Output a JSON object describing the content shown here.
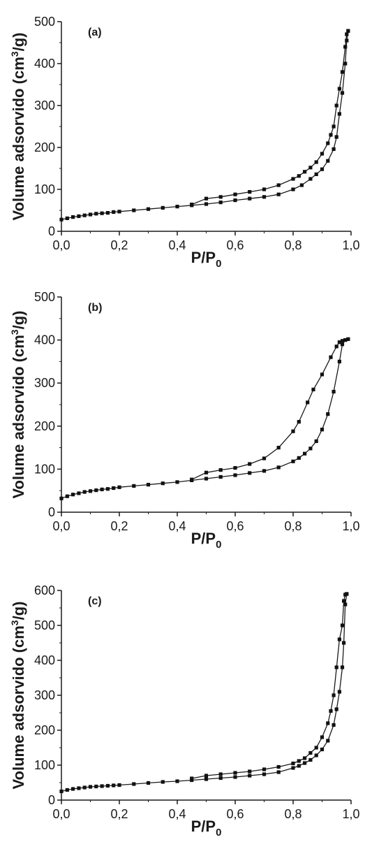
{
  "chart_data": [
    {
      "type": "line",
      "panel_label": "(a)",
      "ylabel_main": "Volume adsorvido (cm",
      "ylabel_sup": "3",
      "ylabel_tail": "/g)",
      "xlabel_main": "P/P",
      "xlabel_sub": "0",
      "xlim": [
        0,
        1
      ],
      "ylim": [
        0,
        500
      ],
      "x_ticks": [
        0,
        0.2,
        0.4,
        0.6,
        0.8,
        1.0
      ],
      "x_tick_labels": [
        "0,0",
        "0,2",
        "0,4",
        "0,6",
        "0,8",
        "1,0"
      ],
      "y_ticks": [
        0,
        100,
        200,
        300,
        400,
        500
      ],
      "y_tick_labels": [
        "0",
        "100",
        "200",
        "300",
        "400",
        "500"
      ],
      "series": [
        {
          "x": [
            0.0,
            0.02,
            0.04,
            0.06,
            0.08,
            0.1,
            0.12,
            0.14,
            0.16,
            0.18,
            0.2,
            0.25,
            0.3,
            0.35,
            0.4,
            0.45,
            0.5,
            0.55,
            0.6,
            0.65,
            0.7,
            0.75,
            0.8,
            0.83,
            0.86,
            0.88,
            0.9,
            0.92,
            0.94,
            0.95,
            0.96,
            0.97,
            0.98,
            0.985,
            0.99
          ],
          "y": [
            28,
            31,
            34,
            36,
            38,
            40,
            42,
            43,
            44,
            46,
            47,
            50,
            53,
            56,
            59,
            62,
            65,
            69,
            74,
            78,
            82,
            88,
            100,
            110,
            125,
            136,
            148,
            168,
            196,
            225,
            280,
            330,
            400,
            455,
            478
          ]
        },
        {
          "x": [
            0.99,
            0.985,
            0.98,
            0.97,
            0.96,
            0.95,
            0.94,
            0.93,
            0.92,
            0.9,
            0.88,
            0.86,
            0.84,
            0.82,
            0.8,
            0.75,
            0.7,
            0.65,
            0.6,
            0.55,
            0.5,
            0.45
          ],
          "y": [
            478,
            470,
            440,
            380,
            340,
            300,
            250,
            230,
            210,
            185,
            165,
            152,
            142,
            132,
            125,
            110,
            100,
            94,
            88,
            82,
            78,
            64
          ]
        }
      ]
    },
    {
      "type": "line",
      "panel_label": "(b)",
      "ylabel_main": "Volume adsorvido (cm",
      "ylabel_sup": "3",
      "ylabel_tail": "/g)",
      "xlabel_main": "P/P",
      "xlabel_sub": "0",
      "xlim": [
        0,
        1
      ],
      "ylim": [
        0,
        500
      ],
      "x_ticks": [
        0,
        0.2,
        0.4,
        0.6,
        0.8,
        1.0
      ],
      "x_tick_labels": [
        "0,0",
        "0,2",
        "0,4",
        "0,6",
        "0,8",
        "1,0"
      ],
      "y_ticks": [
        0,
        100,
        200,
        300,
        400,
        500
      ],
      "y_tick_labels": [
        "0",
        "100",
        "200",
        "300",
        "400",
        "500"
      ],
      "series": [
        {
          "x": [
            0.0,
            0.02,
            0.04,
            0.06,
            0.08,
            0.1,
            0.12,
            0.14,
            0.16,
            0.18,
            0.2,
            0.25,
            0.3,
            0.35,
            0.4,
            0.45,
            0.5,
            0.55,
            0.6,
            0.65,
            0.7,
            0.75,
            0.8,
            0.82,
            0.84,
            0.86,
            0.88,
            0.9,
            0.92,
            0.94,
            0.96,
            0.97,
            0.98,
            0.99
          ],
          "y": [
            32,
            37,
            41,
            44,
            47,
            49,
            51,
            53,
            54,
            56,
            58,
            61,
            64,
            67,
            70,
            74,
            78,
            82,
            86,
            91,
            96,
            104,
            118,
            126,
            136,
            148,
            165,
            192,
            228,
            280,
            350,
            390,
            400,
            402
          ]
        },
        {
          "x": [
            0.99,
            0.98,
            0.97,
            0.96,
            0.95,
            0.93,
            0.9,
            0.87,
            0.85,
            0.82,
            0.8,
            0.75,
            0.7,
            0.65,
            0.6,
            0.55,
            0.5,
            0.45
          ],
          "y": [
            402,
            400,
            398,
            395,
            385,
            360,
            320,
            285,
            255,
            210,
            188,
            150,
            125,
            112,
            103,
            98,
            92,
            76
          ]
        }
      ]
    },
    {
      "type": "line",
      "panel_label": "(c)",
      "ylabel_main": "Volume adsorvido (cm",
      "ylabel_sup": "3",
      "ylabel_tail": "/g)",
      "xlabel_main": "P/P",
      "xlabel_sub": "0",
      "xlim": [
        0,
        1
      ],
      "ylim": [
        0,
        600
      ],
      "x_ticks": [
        0,
        0.2,
        0.4,
        0.6,
        0.8,
        1.0
      ],
      "x_tick_labels": [
        "0,0",
        "0,2",
        "0,4",
        "0,6",
        "0,8",
        "1,0"
      ],
      "y_ticks": [
        0,
        100,
        200,
        300,
        400,
        500,
        600
      ],
      "y_tick_labels": [
        "0",
        "100",
        "200",
        "300",
        "400",
        "500",
        "600"
      ],
      "series": [
        {
          "x": [
            0.0,
            0.02,
            0.04,
            0.06,
            0.08,
            0.1,
            0.12,
            0.14,
            0.16,
            0.18,
            0.2,
            0.25,
            0.3,
            0.35,
            0.4,
            0.45,
            0.5,
            0.55,
            0.6,
            0.65,
            0.7,
            0.75,
            0.8,
            0.82,
            0.84,
            0.86,
            0.88,
            0.9,
            0.92,
            0.94,
            0.95,
            0.96,
            0.97,
            0.975,
            0.98,
            0.985
          ],
          "y": [
            25,
            29,
            32,
            34,
            36,
            38,
            39,
            40,
            41,
            42,
            43,
            46,
            49,
            52,
            54,
            57,
            60,
            63,
            66,
            70,
            74,
            80,
            92,
            98,
            106,
            115,
            128,
            145,
            170,
            215,
            260,
            310,
            380,
            450,
            560,
            590
          ]
        },
        {
          "x": [
            0.985,
            0.98,
            0.975,
            0.97,
            0.96,
            0.95,
            0.94,
            0.93,
            0.92,
            0.9,
            0.88,
            0.86,
            0.84,
            0.82,
            0.8,
            0.75,
            0.7,
            0.65,
            0.6,
            0.55,
            0.5,
            0.45
          ],
          "y": [
            590,
            588,
            570,
            500,
            460,
            380,
            300,
            255,
            220,
            180,
            150,
            135,
            120,
            112,
            105,
            95,
            88,
            82,
            78,
            74,
            70,
            62
          ]
        }
      ]
    }
  ]
}
